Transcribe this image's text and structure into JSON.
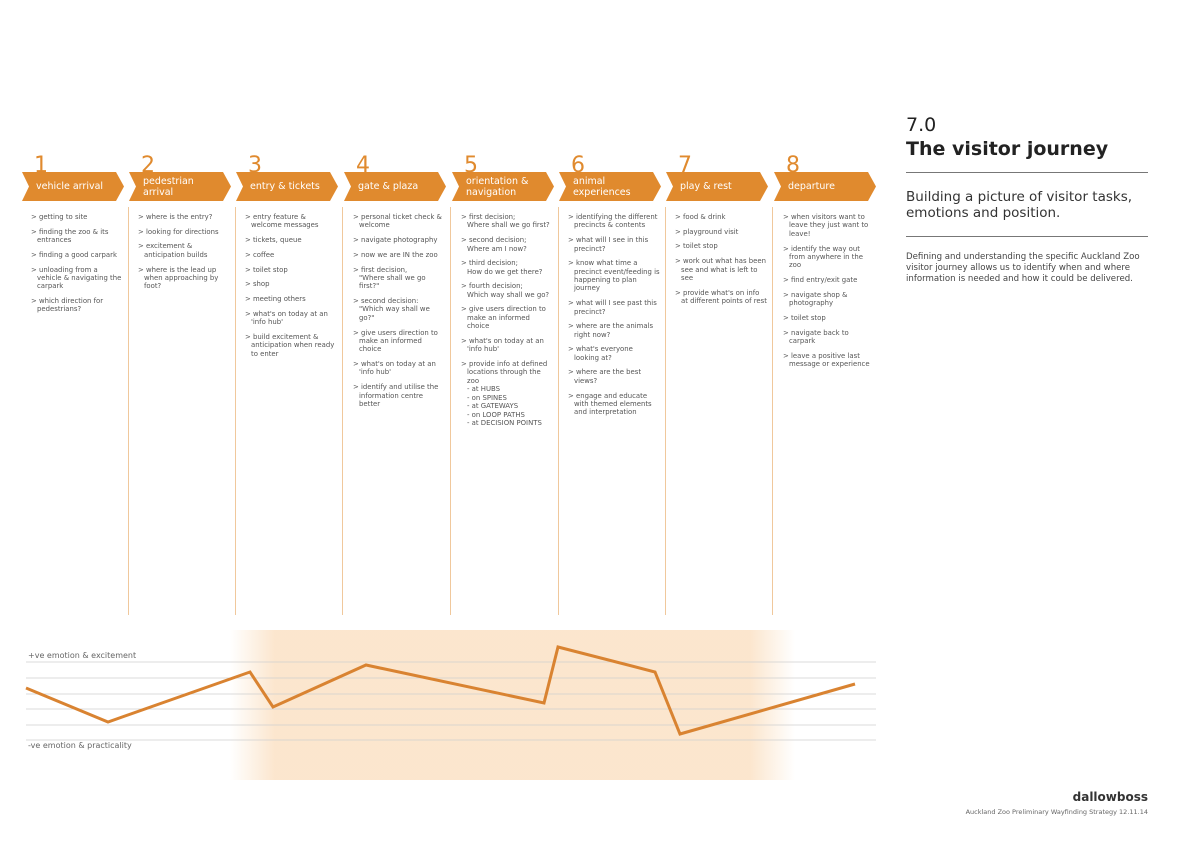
{
  "section_number": "7.0",
  "title": "The visitor journey",
  "subtitle": "Building a picture of visitor tasks, emotions and position.",
  "description": "Defining and understanding the specific Auckland Zoo visitor journey allows us to identify when and where information is needed and how it could be delivered.",
  "accent_color": "#e08a2e",
  "stages": [
    {
      "number": "1",
      "label": "vehicle arrival",
      "items": [
        "getting to site",
        "finding the zoo & its entrances",
        "finding a good carpark",
        "unloading from a vehicle & navigating the carpark",
        "which direction for pedestrians?"
      ]
    },
    {
      "number": "2",
      "label": "pedestrian arrival",
      "items": [
        "where is the entry?",
        "looking for directions",
        "excitement & anticipation builds",
        "where is the lead up when approaching by foot?"
      ]
    },
    {
      "number": "3",
      "label": "entry & tickets",
      "items": [
        "entry feature & welcome messages",
        "tickets, queue",
        "coffee",
        "toilet stop",
        "shop",
        "meeting others",
        "what's on today at an 'info hub'",
        "build excitement & anticipation when ready to enter"
      ]
    },
    {
      "number": "4",
      "label": "gate & plaza",
      "items": [
        "personal ticket check & welcome",
        "navigate photography",
        "now we are IN the zoo",
        "first decision,\n\"Where shall we go first?\"",
        "second decision:\n\"Which way shall we go?\"",
        "give users direction to make an informed choice",
        "what's on today at an 'info hub'",
        "identify and utilise the information centre better"
      ]
    },
    {
      "number": "5",
      "label": "orientation & navigation",
      "items": [
        "first decision;\nWhere shall we go first?",
        "second decision;\nWhere am I now?",
        "third decision;\nHow do we get there?",
        "fourth decision;\nWhich way shall we go?",
        "give users direction to make an informed choice",
        "what's on today at an 'info hub'",
        "provide info at defined locations through the zoo\n- at HUBS\n- on SPINES\n- at GATEWAYS\n- on LOOP PATHS\n- at DECISION POINTS"
      ]
    },
    {
      "number": "6",
      "label": "animal experiences",
      "items": [
        "identifying the different precincts & contents",
        "what will I see in this precinct?",
        "know what time a precinct event/feeding is happening to plan journey",
        "what will I see past this precinct?",
        "where are the animals right now?",
        "what's everyone looking at?",
        "where are the best views?",
        "engage and educate with themed elements and interpretation"
      ]
    },
    {
      "number": "7",
      "label": "play & rest",
      "items": [
        "food & drink",
        "playground visit",
        "toilet stop",
        "work out what has been see and what is left to see",
        "provide what's on info at different points of rest"
      ]
    },
    {
      "number": "8",
      "label": "departure",
      "items": [
        "when visitors want to leave they just want to leave!",
        "identify the way out from anywhere in the zoo",
        "find entry/exit gate",
        "navigate shop & photography",
        "toilet stop",
        "navigate back to carpark",
        "leave a positive last message or experience"
      ]
    }
  ],
  "emotion_chart": {
    "top_label": "+ve emotion & excitement",
    "bottom_label": "-ve emotion & practicality",
    "line_color": "#d98331"
  },
  "brand": "dallowboss",
  "footer": "Auckland Zoo Preliminary Wayfinding Strategy  12.11.14"
}
